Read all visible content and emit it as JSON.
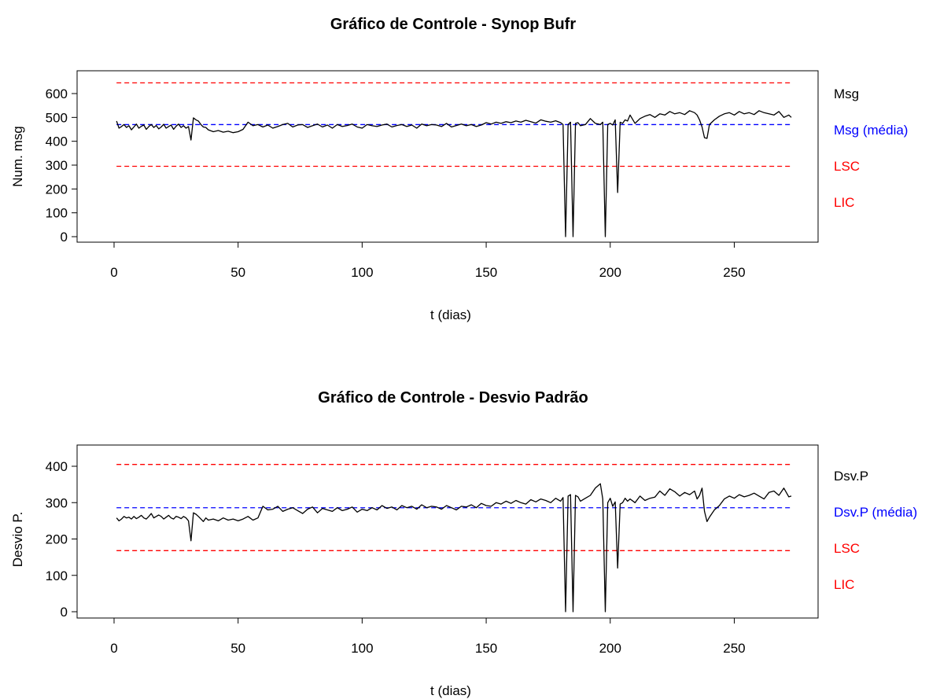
{
  "chart_data": [
    {
      "type": "line",
      "title": "Gráfico de Controle - Synop Bufr",
      "xlabel": "t (dias)",
      "ylabel": "Num. msg",
      "xlim": [
        0,
        273
      ],
      "ylim": [
        0,
        600
      ],
      "xticks": [
        0,
        50,
        100,
        150,
        200,
        250
      ],
      "yticks": [
        0,
        100,
        200,
        300,
        400,
        500,
        600
      ],
      "colors": {
        "series": "#000000",
        "mean": "#0000ff",
        "limits": "#ff0000"
      },
      "series": [
        {
          "name": "Msg",
          "x": [
            1,
            2,
            3,
            4,
            5,
            6,
            7,
            8,
            9,
            10,
            11,
            12,
            13,
            14,
            15,
            16,
            17,
            18,
            19,
            20,
            21,
            22,
            23,
            24,
            25,
            26,
            27,
            28,
            29,
            30,
            31,
            32,
            33,
            34,
            35,
            36,
            37,
            38,
            40,
            42,
            44,
            46,
            48,
            50,
            52,
            54,
            56,
            58,
            60,
            62,
            64,
            66,
            68,
            70,
            72,
            74,
            76,
            78,
            80,
            82,
            84,
            86,
            88,
            90,
            92,
            94,
            96,
            98,
            100,
            102,
            104,
            106,
            108,
            110,
            112,
            114,
            116,
            118,
            120,
            122,
            124,
            126,
            128,
            130,
            132,
            134,
            136,
            138,
            140,
            142,
            144,
            146,
            148,
            150,
            152,
            154,
            156,
            158,
            160,
            162,
            164,
            166,
            168,
            170,
            172,
            174,
            176,
            178,
            180,
            181,
            182,
            183,
            184,
            185,
            186,
            187,
            188,
            190,
            192,
            194,
            196,
            197,
            198,
            199,
            200,
            201,
            202,
            203,
            204,
            205,
            206,
            207,
            208,
            210,
            212,
            214,
            216,
            218,
            220,
            222,
            224,
            226,
            228,
            230,
            232,
            234,
            235,
            236,
            237,
            238,
            239,
            240,
            242,
            244,
            246,
            248,
            250,
            252,
            254,
            256,
            258,
            260,
            262,
            264,
            266,
            268,
            270,
            272,
            273
          ],
          "values": [
            485,
            455,
            462,
            470,
            458,
            465,
            448,
            460,
            472,
            455,
            463,
            468,
            450,
            462,
            470,
            458,
            466,
            452,
            460,
            471,
            455,
            462,
            468,
            450,
            463,
            472,
            458,
            465,
            455,
            462,
            405,
            498,
            490,
            485,
            470,
            460,
            458,
            448,
            440,
            445,
            438,
            442,
            436,
            440,
            450,
            480,
            465,
            470,
            460,
            468,
            455,
            462,
            470,
            475,
            460,
            468,
            470,
            458,
            465,
            472,
            460,
            468,
            455,
            470,
            462,
            466,
            472,
            460,
            455,
            470,
            465,
            462,
            468,
            472,
            460,
            466,
            470,
            462,
            468,
            455,
            472,
            465,
            470,
            468,
            462,
            475,
            460,
            466,
            472,
            465,
            470,
            462,
            468,
            478,
            472,
            480,
            475,
            482,
            478,
            485,
            480,
            488,
            482,
            476,
            490,
            484,
            480,
            486,
            478,
            470,
            0,
            470,
            480,
            0,
            475,
            478,
            465,
            470,
            495,
            475,
            470,
            480,
            0,
            470,
            475,
            468,
            490,
            185,
            480,
            475,
            490,
            485,
            510,
            475,
            495,
            505,
            512,
            500,
            515,
            510,
            525,
            515,
            520,
            512,
            528,
            520,
            510,
            490,
            460,
            415,
            412,
            470,
            490,
            505,
            515,
            520,
            510,
            525,
            515,
            520,
            512,
            528,
            520,
            515,
            510,
            525,
            500,
            510,
            500
          ]
        },
        {
          "name": "Msg (média)",
          "value": 470
        },
        {
          "name": "LSC",
          "value": 645
        },
        {
          "name": "LIC",
          "value": 295
        }
      ]
    },
    {
      "type": "line",
      "title": "Gráfico de Controle - Desvio Padrão",
      "xlabel": "t (dias)",
      "ylabel": "Desvio P.",
      "xlim": [
        0,
        273
      ],
      "ylim": [
        0,
        400
      ],
      "xticks": [
        0,
        50,
        100,
        150,
        200,
        250
      ],
      "yticks": [
        0,
        100,
        200,
        300,
        400
      ],
      "colors": {
        "series": "#000000",
        "mean": "#0000ff",
        "limits": "#ff0000"
      },
      "series": [
        {
          "name": "Dsv.P",
          "x": [
            1,
            2,
            3,
            4,
            5,
            6,
            7,
            8,
            9,
            10,
            11,
            12,
            13,
            14,
            15,
            16,
            17,
            18,
            19,
            20,
            21,
            22,
            23,
            24,
            25,
            26,
            27,
            28,
            29,
            30,
            31,
            32,
            33,
            34,
            35,
            36,
            37,
            38,
            40,
            42,
            44,
            46,
            48,
            50,
            52,
            54,
            56,
            58,
            60,
            62,
            64,
            66,
            68,
            70,
            72,
            74,
            76,
            78,
            80,
            82,
            84,
            86,
            88,
            90,
            92,
            94,
            96,
            98,
            100,
            102,
            104,
            106,
            108,
            110,
            112,
            114,
            116,
            118,
            120,
            122,
            124,
            126,
            128,
            130,
            132,
            134,
            136,
            138,
            140,
            142,
            144,
            146,
            148,
            150,
            152,
            154,
            156,
            158,
            160,
            162,
            164,
            166,
            168,
            170,
            172,
            174,
            176,
            178,
            180,
            181,
            182,
            183,
            184,
            185,
            186,
            187,
            188,
            190,
            192,
            194,
            196,
            197,
            198,
            199,
            200,
            201,
            202,
            203,
            204,
            205,
            206,
            207,
            208,
            210,
            212,
            214,
            216,
            218,
            220,
            222,
            224,
            226,
            228,
            230,
            232,
            234,
            235,
            236,
            237,
            238,
            239,
            240,
            242,
            244,
            246,
            248,
            250,
            252,
            254,
            256,
            258,
            260,
            262,
            264,
            266,
            268,
            270,
            272,
            273
          ],
          "values": [
            258,
            250,
            255,
            262,
            258,
            260,
            255,
            262,
            256,
            260,
            265,
            258,
            255,
            262,
            270,
            258,
            262,
            266,
            262,
            255,
            260,
            265,
            258,
            255,
            262,
            260,
            256,
            262,
            258,
            250,
            195,
            272,
            268,
            262,
            255,
            248,
            258,
            252,
            255,
            250,
            258,
            252,
            255,
            250,
            255,
            262,
            252,
            258,
            290,
            280,
            282,
            290,
            276,
            282,
            286,
            278,
            270,
            282,
            288,
            272,
            284,
            280,
            276,
            286,
            278,
            282,
            288,
            274,
            282,
            278,
            286,
            280,
            292,
            284,
            288,
            280,
            292,
            286,
            290,
            282,
            294,
            286,
            290,
            288,
            282,
            292,
            286,
            280,
            290,
            288,
            294,
            286,
            298,
            292,
            290,
            300,
            296,
            304,
            298,
            306,
            300,
            296,
            308,
            302,
            310,
            306,
            300,
            312,
            304,
            314,
            0,
            318,
            322,
            0,
            320,
            316,
            304,
            312,
            320,
            340,
            352,
            310,
            0,
            300,
            312,
            290,
            302,
            120,
            296,
            300,
            312,
            304,
            310,
            300,
            318,
            306,
            312,
            315,
            332,
            320,
            338,
            330,
            318,
            328,
            322,
            332,
            310,
            320,
            340,
            276,
            248,
            260,
            280,
            292,
            310,
            318,
            312,
            322,
            316,
            320,
            326,
            318,
            310,
            328,
            332,
            320,
            340,
            316,
            318
          ]
        },
        {
          "name": "Dsv.P (média)",
          "value": 286
        },
        {
          "name": "LSC",
          "value": 405
        },
        {
          "name": "LIC",
          "value": 168
        }
      ]
    }
  ]
}
